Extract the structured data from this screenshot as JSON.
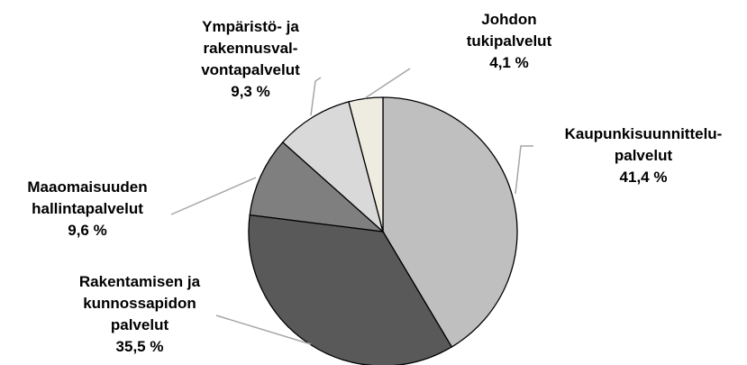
{
  "chart_data": {
    "type": "pie",
    "categories": [
      "Kaupunkisuunnittelu-\npalvelut",
      "Rakentamisen ja\nkunnossapidon\npalvelut",
      "Maaomaisuuden\nhallintapalvelut",
      "Ympäristö- ja\nrakennusval-\nvontapalvelut",
      "Johdon\ntukipalvelut"
    ],
    "values": [
      41.4,
      35.5,
      9.6,
      9.3,
      4.1
    ],
    "value_labels": [
      "41,4 %",
      "35,5 %",
      "9,6 %",
      "9,3 %",
      "4,1 %"
    ],
    "colors": [
      "#bfbfbf",
      "#595959",
      "#7f7f7f",
      "#d9d9d9",
      "#eeece1"
    ]
  }
}
